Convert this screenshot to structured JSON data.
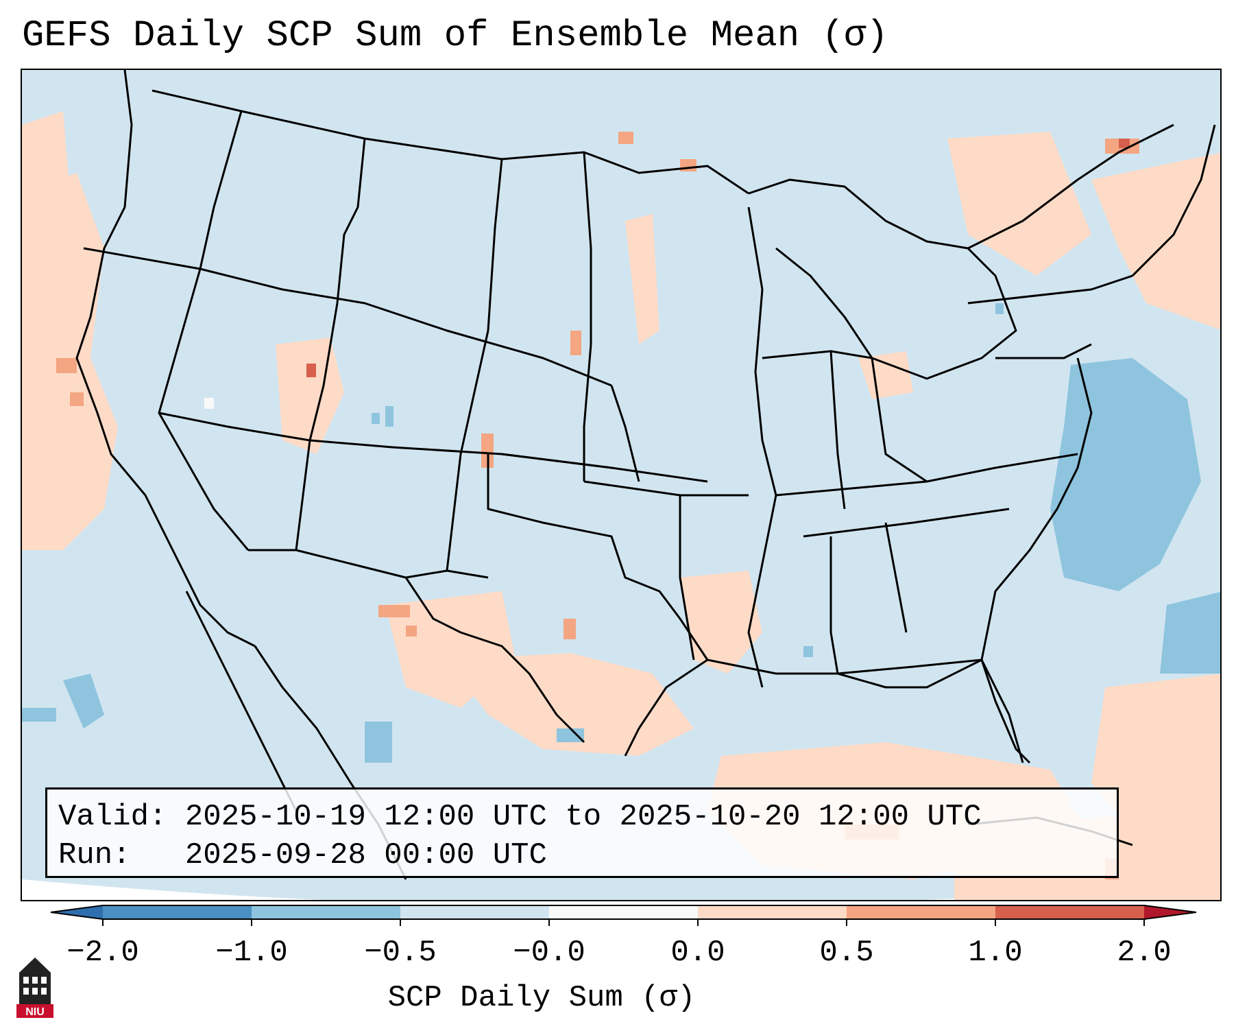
{
  "title": "GEFS Daily SCP Sum of Ensemble Mean (σ)",
  "info": {
    "valid_label": "Valid:",
    "valid_value": "2025-10-19 12:00 UTC to 2025-10-20 12:00 UTC",
    "run_label": "Run:",
    "run_value": "2025-09-28 00:00 UTC"
  },
  "colorbar": {
    "label": "SCP Daily Sum (σ)",
    "ticks": [
      "−2.0",
      "−1.0",
      "−0.5",
      "−0.0",
      "0.0",
      "0.5",
      "1.0",
      "2.0"
    ],
    "bins": [
      "#4a90c2",
      "#8ec4de",
      "#d1e5f0",
      "#f9f9f9",
      "#fddbc7",
      "#f4a582",
      "#d6604d"
    ],
    "extend_low": "#2f6fae",
    "extend_high": "#b2182b"
  },
  "map_colors": {
    "background": "#d1e5f0",
    "positive_weak": "#fddbc7",
    "positive_mod": "#f4a582",
    "positive_strong": "#d6604d",
    "negative_mod": "#8ec4de",
    "neutral": "#f9f9f9",
    "borders": "#000000"
  },
  "logo": {
    "text": "NIU",
    "icon": "university-tower-icon"
  }
}
